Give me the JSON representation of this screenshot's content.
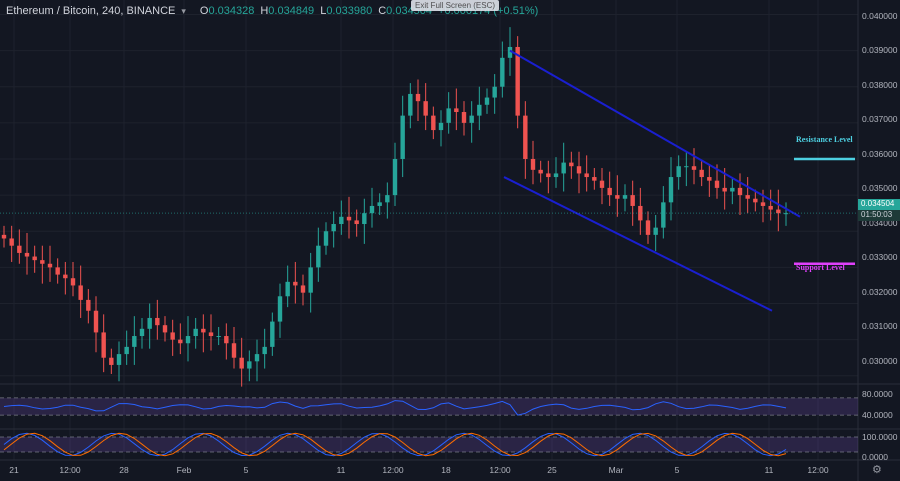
{
  "header": {
    "symbol": "Ethereum / Bitcoin, 240, BINANCE",
    "open_key": "O",
    "open": "0.034328",
    "high_key": "H",
    "high": "0.034849",
    "low_key": "L",
    "low": "0.033980",
    "close_key": "C",
    "close": "0.034504",
    "change": "+0.000174 (+0.51%)"
  },
  "tooltip": "Exit Full Screen (ESC)",
  "price_axis": [
    "0.040000",
    "0.039000",
    "0.038000",
    "0.037000",
    "0.036000",
    "0.035000",
    "0.034000",
    "0.033000",
    "0.032000",
    "0.031000",
    "0.030000"
  ],
  "rsi_axis": [
    "80.0000",
    "40.0000"
  ],
  "stoch_axis": [
    "100.0000",
    "0.0000"
  ],
  "time_axis": [
    "21",
    "12:00",
    "28",
    "Feb",
    "5",
    "11",
    "12:00",
    "18",
    "12:00",
    "25",
    "Mar",
    "5",
    "11",
    "12:00"
  ],
  "current_price": "0.034504",
  "countdown": "01:50:03",
  "annotations": {
    "resistance": "Resistance Level",
    "support": "Support Level"
  },
  "colors": {
    "background": "#131722",
    "up": "#26a69a",
    "down": "#ef5350",
    "channel": "#1a1fd0",
    "resistance": "#4dd0e1",
    "support": "#e040fb"
  },
  "chart_data": {
    "type": "candlestick",
    "series": [
      {
        "name": "Ethereum / Bitcoin, 240, BINANCE",
        "close": [
          0.0338,
          0.0336,
          0.0334,
          0.0333,
          0.0332,
          0.0331,
          0.033,
          0.0328,
          0.0327,
          0.0325,
          0.0321,
          0.0318,
          0.0312,
          0.0305,
          0.0303,
          0.0306,
          0.0308,
          0.0311,
          0.0313,
          0.0316,
          0.0314,
          0.0312,
          0.031,
          0.0309,
          0.0311,
          0.0313,
          0.0312,
          0.0311,
          0.0311,
          0.0309,
          0.0305,
          0.0302,
          0.0304,
          0.0306,
          0.0308,
          0.0315,
          0.0322,
          0.0326,
          0.0325,
          0.0323,
          0.033,
          0.0336,
          0.034,
          0.0342,
          0.0344,
          0.0343,
          0.0342,
          0.0345,
          0.0347,
          0.0348,
          0.035,
          0.036,
          0.0372,
          0.0378,
          0.0376,
          0.0372,
          0.0368,
          0.037,
          0.0374,
          0.0373,
          0.037,
          0.0372,
          0.0375,
          0.0377,
          0.038,
          0.0388,
          0.0391,
          0.0372,
          0.036,
          0.0357,
          0.0356,
          0.0355,
          0.0356,
          0.0359,
          0.0358,
          0.0356,
          0.0355,
          0.0354,
          0.0352,
          0.035,
          0.0349,
          0.035,
          0.0347,
          0.0343,
          0.0339,
          0.0341,
          0.0348,
          0.0355,
          0.0358,
          0.0358,
          0.0357,
          0.0355,
          0.0354,
          0.0352,
          0.0351,
          0.0352,
          0.035,
          0.0349,
          0.0348,
          0.0347,
          0.0346,
          0.0345,
          0.0345
        ]
      }
    ],
    "ylim": [
      0.0298,
      0.0404
    ],
    "channel": {
      "upper": [
        0.039,
        0.0344
      ],
      "lower": [
        0.0355,
        0.0318
      ]
    },
    "levels": {
      "resistance": 0.036,
      "support": 0.0331
    }
  }
}
